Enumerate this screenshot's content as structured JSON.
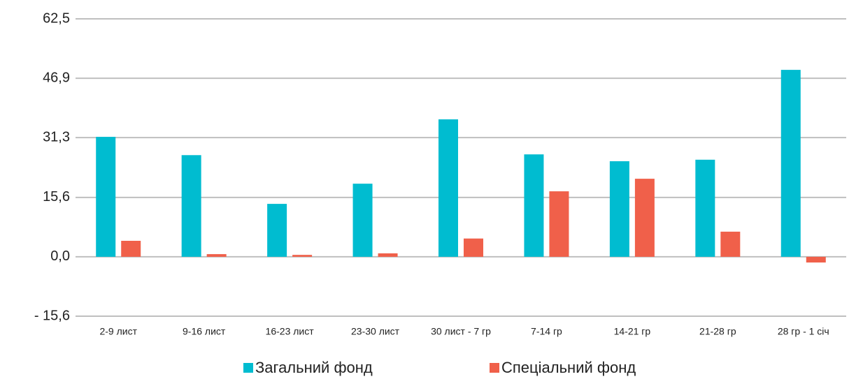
{
  "chart_data": {
    "type": "bar",
    "categories": [
      "2-9 лист",
      "9-16 лист",
      "16-23 лист",
      "23-30 лист",
      "30 лист - 7 гр",
      "7-14 гр",
      "14-21 гр",
      "21-28 гр",
      "28 гр - 1 січ"
    ],
    "series": [
      {
        "name": "Загальний фонд",
        "color": "#00bcd0",
        "values": [
          31.5,
          26.7,
          13.9,
          19.2,
          36.1,
          26.9,
          25.1,
          25.5,
          49.1
        ]
      },
      {
        "name": "Спеціальний фонд",
        "color": "#f0604a",
        "values": [
          4.2,
          0.7,
          0.5,
          0.9,
          4.8,
          17.2,
          20.5,
          6.6,
          -1.5
        ]
      }
    ],
    "ylim": [
      -15.6,
      62.5
    ],
    "yticks": [
      {
        "value": -15.6,
        "label": "- 15,6"
      },
      {
        "value": 0,
        "label": "0,0"
      },
      {
        "value": 15.6,
        "label": "15,6"
      },
      {
        "value": 31.3,
        "label": "31,3"
      },
      {
        "value": 46.9,
        "label": "46,9"
      },
      {
        "value": 62.5,
        "label": "62,5"
      }
    ],
    "grid": true,
    "legend": "bottom"
  }
}
